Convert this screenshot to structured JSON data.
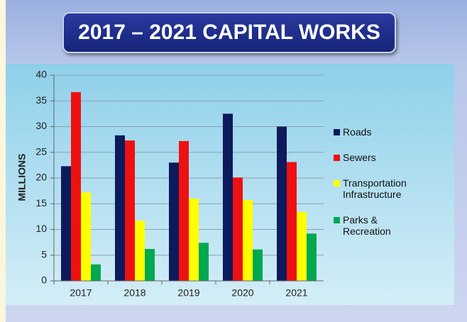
{
  "chart_data": {
    "type": "bar",
    "title": "2017 – 2021 CAPITAL WORKS",
    "ylabel": "MILLIONS",
    "categories": [
      "2017",
      "2018",
      "2019",
      "2020",
      "2021"
    ],
    "series": [
      {
        "name": "Roads",
        "color": "#0d1a5c",
        "values": [
          22.3,
          28.3,
          23.0,
          32.5,
          30.0
        ]
      },
      {
        "name": "Sewers",
        "color": "#ee1111",
        "values": [
          36.7,
          27.3,
          27.2,
          20.1,
          23.1
        ]
      },
      {
        "name": "Transportation Infrastructure",
        "color": "#ffff00",
        "values": [
          17.2,
          11.7,
          16.0,
          15.7,
          13.4
        ]
      },
      {
        "name": "Parks & Recreation",
        "color": "#00a850",
        "values": [
          3.2,
          6.2,
          7.4,
          6.1,
          9.2
        ]
      }
    ],
    "ylim": [
      0,
      40
    ],
    "yticks": [
      0,
      5,
      10,
      15,
      20,
      25,
      30,
      35,
      40
    ],
    "grid": true,
    "legend": "right"
  }
}
